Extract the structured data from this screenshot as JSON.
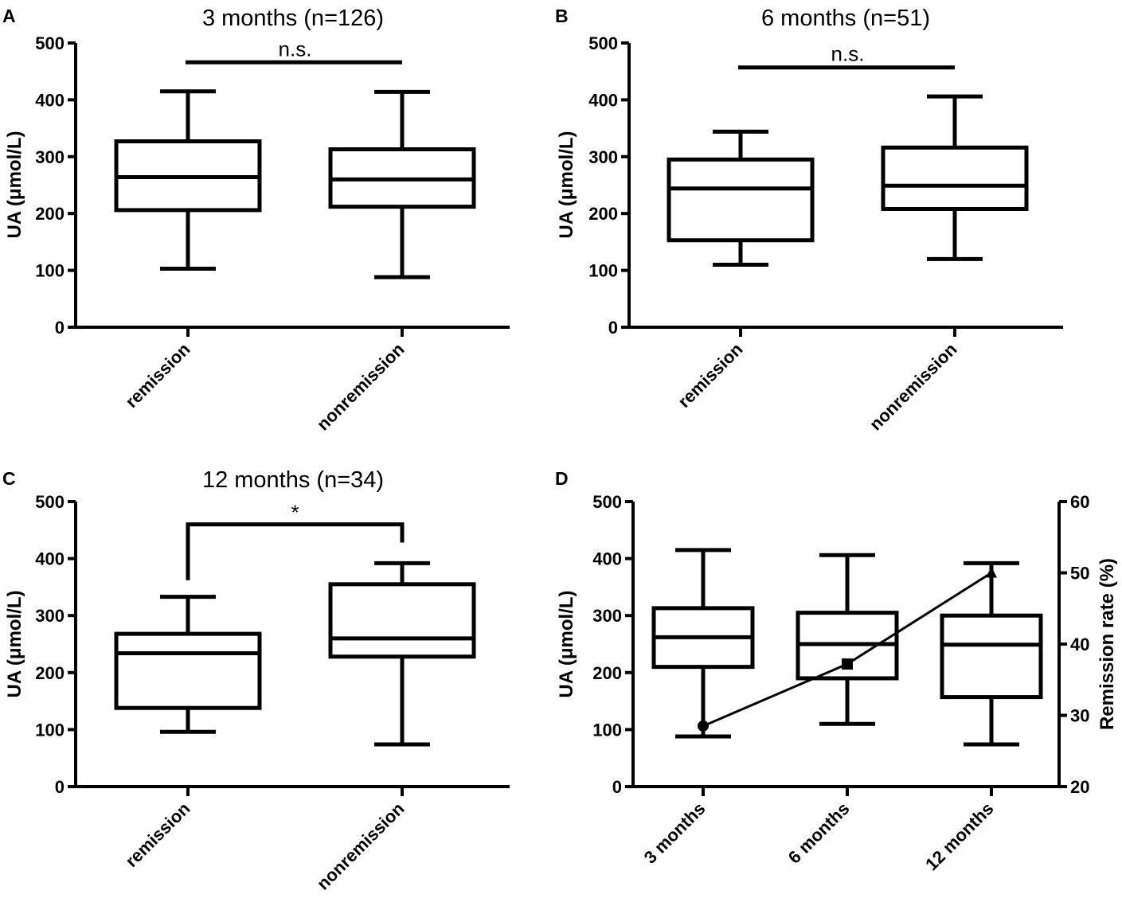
{
  "chart_data": [
    {
      "id": "A",
      "panel_label": "A",
      "type": "box",
      "title": "3 months (n=126)",
      "ylabel": "UA (μmol/L)",
      "ylim": [
        0,
        500
      ],
      "yticks": [
        0,
        100,
        200,
        300,
        400,
        500
      ],
      "categories": [
        "remission",
        "nonremission"
      ],
      "boxes": [
        {
          "name": "remission",
          "min": 103,
          "q1": 206,
          "median": 264,
          "q3": 327,
          "max": 415
        },
        {
          "name": "nonremission",
          "min": 88,
          "q1": 212,
          "median": 260,
          "q3": 313,
          "max": 414
        }
      ],
      "significance": {
        "label": "n.s.",
        "y": 466,
        "style": "line"
      }
    },
    {
      "id": "B",
      "panel_label": "B",
      "type": "box",
      "title": "6 months (n=51)",
      "ylabel": "UA (μmol/L)",
      "ylim": [
        0,
        500
      ],
      "yticks": [
        0,
        100,
        200,
        300,
        400,
        500
      ],
      "categories": [
        "remission",
        "nonremission"
      ],
      "boxes": [
        {
          "name": "remission",
          "min": 110,
          "q1": 153,
          "median": 244,
          "q3": 295,
          "max": 344
        },
        {
          "name": "nonremission",
          "min": 120,
          "q1": 208,
          "median": 249,
          "q3": 316,
          "max": 406
        }
      ],
      "significance": {
        "label": "n.s.",
        "y": 457,
        "style": "line"
      }
    },
    {
      "id": "C",
      "panel_label": "C",
      "type": "box",
      "title": "12 months (n=34)",
      "ylabel": "UA (μmol/L)",
      "ylim": [
        0,
        500
      ],
      "yticks": [
        0,
        100,
        200,
        300,
        400,
        500
      ],
      "categories": [
        "remission",
        "nonremission"
      ],
      "boxes": [
        {
          "name": "remission",
          "min": 96,
          "q1": 138,
          "median": 234,
          "q3": 268,
          "max": 333
        },
        {
          "name": "nonremission",
          "min": 74,
          "q1": 228,
          "median": 260,
          "q3": 355,
          "max": 392
        }
      ],
      "significance": {
        "label": "*",
        "y": 460,
        "style": "bracket",
        "left_end": 362,
        "right_end": 428
      }
    },
    {
      "id": "D",
      "panel_label": "D",
      "type": "box",
      "title": "",
      "ylabel": "UA (μmol/L)",
      "y2label": "Remission rate (%)",
      "ylim": [
        0,
        500
      ],
      "yticks": [
        0,
        100,
        200,
        300,
        400,
        500
      ],
      "y2lim": [
        20,
        60
      ],
      "y2ticks": [
        20,
        30,
        40,
        50,
        60
      ],
      "categories": [
        "3 months",
        "6 months",
        "12 months"
      ],
      "boxes": [
        {
          "name": "3 months",
          "min": 88,
          "q1": 210,
          "median": 262,
          "q3": 313,
          "max": 415
        },
        {
          "name": "6 months",
          "min": 110,
          "q1": 190,
          "median": 250,
          "q3": 305,
          "max": 406
        },
        {
          "name": "12 months",
          "min": 74,
          "q1": 157,
          "median": 249,
          "q3": 300,
          "max": 392
        }
      ],
      "line_series": {
        "name": "Remission rate (%)",
        "axis": "right",
        "x": [
          "3 months",
          "6 months",
          "12 months"
        ],
        "values": [
          28.5,
          37.2,
          50.0
        ],
        "markers": [
          "circle",
          "square",
          "triangle"
        ]
      }
    }
  ]
}
